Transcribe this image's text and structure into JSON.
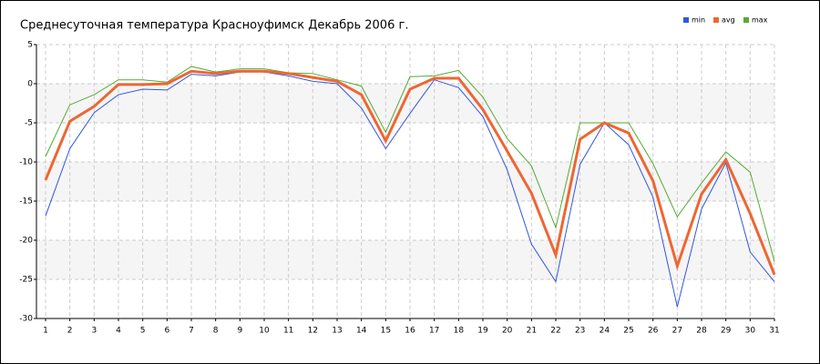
{
  "chart_data": {
    "type": "line",
    "title": "Среднесуточная температура Красноуфимск  Декабрь 2006 г.",
    "categories": [
      "1",
      "2",
      "3",
      "4",
      "5",
      "6",
      "7",
      "8",
      "9",
      "10",
      "11",
      "12",
      "13",
      "14",
      "15",
      "16",
      "17",
      "18",
      "19",
      "20",
      "21",
      "22",
      "23",
      "24",
      "25",
      "26",
      "27",
      "28",
      "29",
      "30",
      "31"
    ],
    "series": [
      {
        "name": "min",
        "color": "#3355dd",
        "values": [
          -16.9,
          -8.3,
          -3.7,
          -1.4,
          -0.7,
          -0.8,
          1.2,
          1.0,
          1.5,
          1.5,
          1.0,
          0.3,
          0.0,
          -3.1,
          -8.3,
          -3.8,
          0.5,
          -0.5,
          -4.2,
          -11.0,
          -20.5,
          -25.3,
          -10.3,
          -5.0,
          -7.8,
          -14.5,
          -28.5,
          -16.0,
          -10.1,
          -21.5,
          -25.3
        ]
      },
      {
        "name": "avg",
        "color": "#ee6633",
        "values": [
          -12.3,
          -4.8,
          -2.9,
          -0.1,
          -0.1,
          0.0,
          1.6,
          1.3,
          1.6,
          1.6,
          1.3,
          0.8,
          0.3,
          -1.4,
          -7.3,
          -0.7,
          0.7,
          0.7,
          -3.3,
          -8.6,
          -14.0,
          -21.9,
          -7.1,
          -5.0,
          -6.3,
          -12.4,
          -23.3,
          -14.1,
          -9.7,
          -16.6,
          -24.4
        ]
      },
      {
        "name": "max",
        "color": "#55aa33",
        "values": [
          -9.3,
          -2.7,
          -1.4,
          0.5,
          0.5,
          0.2,
          2.2,
          1.5,
          1.9,
          1.9,
          1.4,
          1.3,
          0.5,
          -0.3,
          -6.2,
          0.9,
          1.0,
          1.7,
          -1.7,
          -7.0,
          -10.5,
          -18.4,
          -5.0,
          -5.0,
          -5.0,
          -10.2,
          -17.0,
          -12.7,
          -8.7,
          -11.3,
          -22.7
        ]
      }
    ],
    "ylim": [
      -30,
      5
    ],
    "yticks": [
      5,
      0,
      -5,
      -10,
      -15,
      -20,
      -25,
      -30
    ],
    "grid": true
  }
}
